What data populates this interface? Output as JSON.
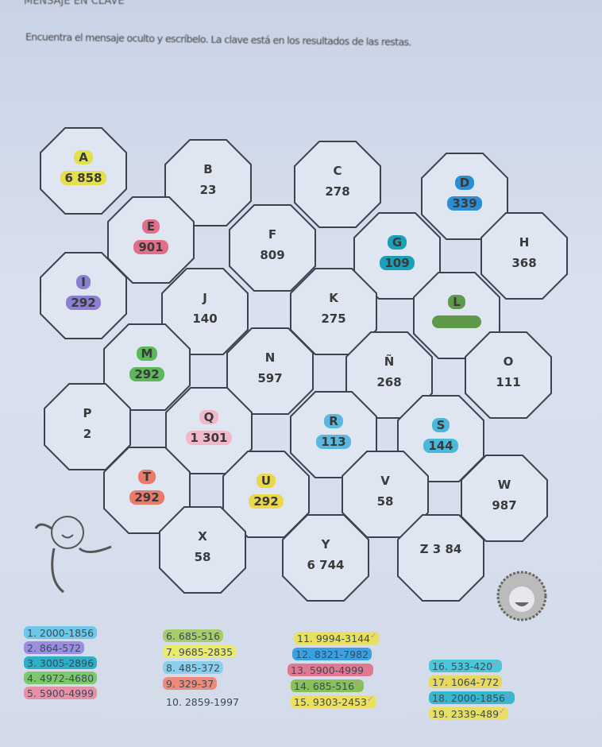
{
  "worksheet": {
    "title": "MENSAJE EN CLAVE",
    "instructions": "Encuentra el mensaje oculto y escríbelo. La clave está en los resultados de las restas."
  },
  "cells": [
    {
      "letter": "A",
      "value": "6 858",
      "color": "#e3e04a"
    },
    {
      "letter": "B",
      "value": "23",
      "color": ""
    },
    {
      "letter": "C",
      "value": "278",
      "color": ""
    },
    {
      "letter": "D",
      "value": "339",
      "color": "#2a8fd6"
    },
    {
      "letter": "E",
      "value": "901",
      "color": "#e0708a"
    },
    {
      "letter": "F",
      "value": "809",
      "color": ""
    },
    {
      "letter": "G",
      "value": "109",
      "color": "#1aa0b8"
    },
    {
      "letter": "H",
      "value": "368",
      "color": ""
    },
    {
      "letter": "I",
      "value": "292",
      "color": "#8a7fd0"
    },
    {
      "letter": "J",
      "value": "140",
      "color": ""
    },
    {
      "letter": "K",
      "value": "275",
      "color": ""
    },
    {
      "letter": "L",
      "value": "",
      "color": "#5f9a4a"
    },
    {
      "letter": "M",
      "value": "292",
      "color": "#5cb85a"
    },
    {
      "letter": "N",
      "value": "597",
      "color": ""
    },
    {
      "letter": "Ñ",
      "value": "268",
      "color": ""
    },
    {
      "letter": "O",
      "value": "111",
      "color": ""
    },
    {
      "letter": "P",
      "value": "2",
      "color": ""
    },
    {
      "letter": "Q",
      "value": "1 301",
      "color": "#f0b8c8"
    },
    {
      "letter": "R",
      "value": "113",
      "color": "#5ab8e0"
    },
    {
      "letter": "S",
      "value": "144",
      "color": "#4ab8d8"
    },
    {
      "letter": "T",
      "value": "292",
      "color": "#ec7a6a"
    },
    {
      "letter": "U",
      "value": "292",
      "color": "#e8d84a"
    },
    {
      "letter": "V",
      "value": "58",
      "color": ""
    },
    {
      "letter": "W",
      "value": "987",
      "color": ""
    },
    {
      "letter": "X",
      "value": "58",
      "color": ""
    },
    {
      "letter": "Y",
      "value": "6 744",
      "color": ""
    },
    {
      "letter": "Z",
      "value": "3 84",
      "color": ""
    }
  ],
  "operations": [
    {
      "text": "1. 2000-1856",
      "color": "#6cc8e8",
      "mark": ""
    },
    {
      "text": "2. 864-572",
      "color": "#9a8ee0",
      "mark": ""
    },
    {
      "text": "3. 3005-2896",
      "color": "#2ab0c8",
      "mark": ""
    },
    {
      "text": "4. 4972-4680",
      "color": "#7cc86a",
      "mark": ""
    },
    {
      "text": "5. 5900-4999",
      "color": "#e890a8",
      "mark": ""
    },
    {
      "text": "6. 685-516",
      "color": "#a8cc6a",
      "mark": ""
    },
    {
      "text": "7. 9685-2835",
      "color": "#ecea6a",
      "mark": ""
    },
    {
      "text": "8. 485-372",
      "color": "#8ad0ec",
      "mark": ""
    },
    {
      "text": "9. 329-37",
      "color": "#ee8a78",
      "mark": ""
    },
    {
      "text": "10. 2859-1997",
      "color": "",
      "mark": ""
    },
    {
      "text": "11. 9994-3144",
      "color": "#e8e060",
      "mark": "✓"
    },
    {
      "text": "12. 8321-7982",
      "color": "#3aa0e0",
      "mark": ""
    },
    {
      "text": "13. 5900-4999",
      "color": "#e07890",
      "mark": "✓"
    },
    {
      "text": "14. 685-516",
      "color": "#88c05a",
      "mark": "✓"
    },
    {
      "text": "15. 9303-2453",
      "color": "#ece060",
      "mark": "✓"
    },
    {
      "text": "16. 533-420",
      "color": "#4ac8d8",
      "mark": "✓"
    },
    {
      "text": "17. 1064-772",
      "color": "#e8d860",
      "mark": ""
    },
    {
      "text": "18. 2000-1856",
      "color": "#38b8cc",
      "mark": "✓"
    },
    {
      "text": "19. 2339-489",
      "color": "#e8e060",
      "mark": "✓"
    }
  ]
}
